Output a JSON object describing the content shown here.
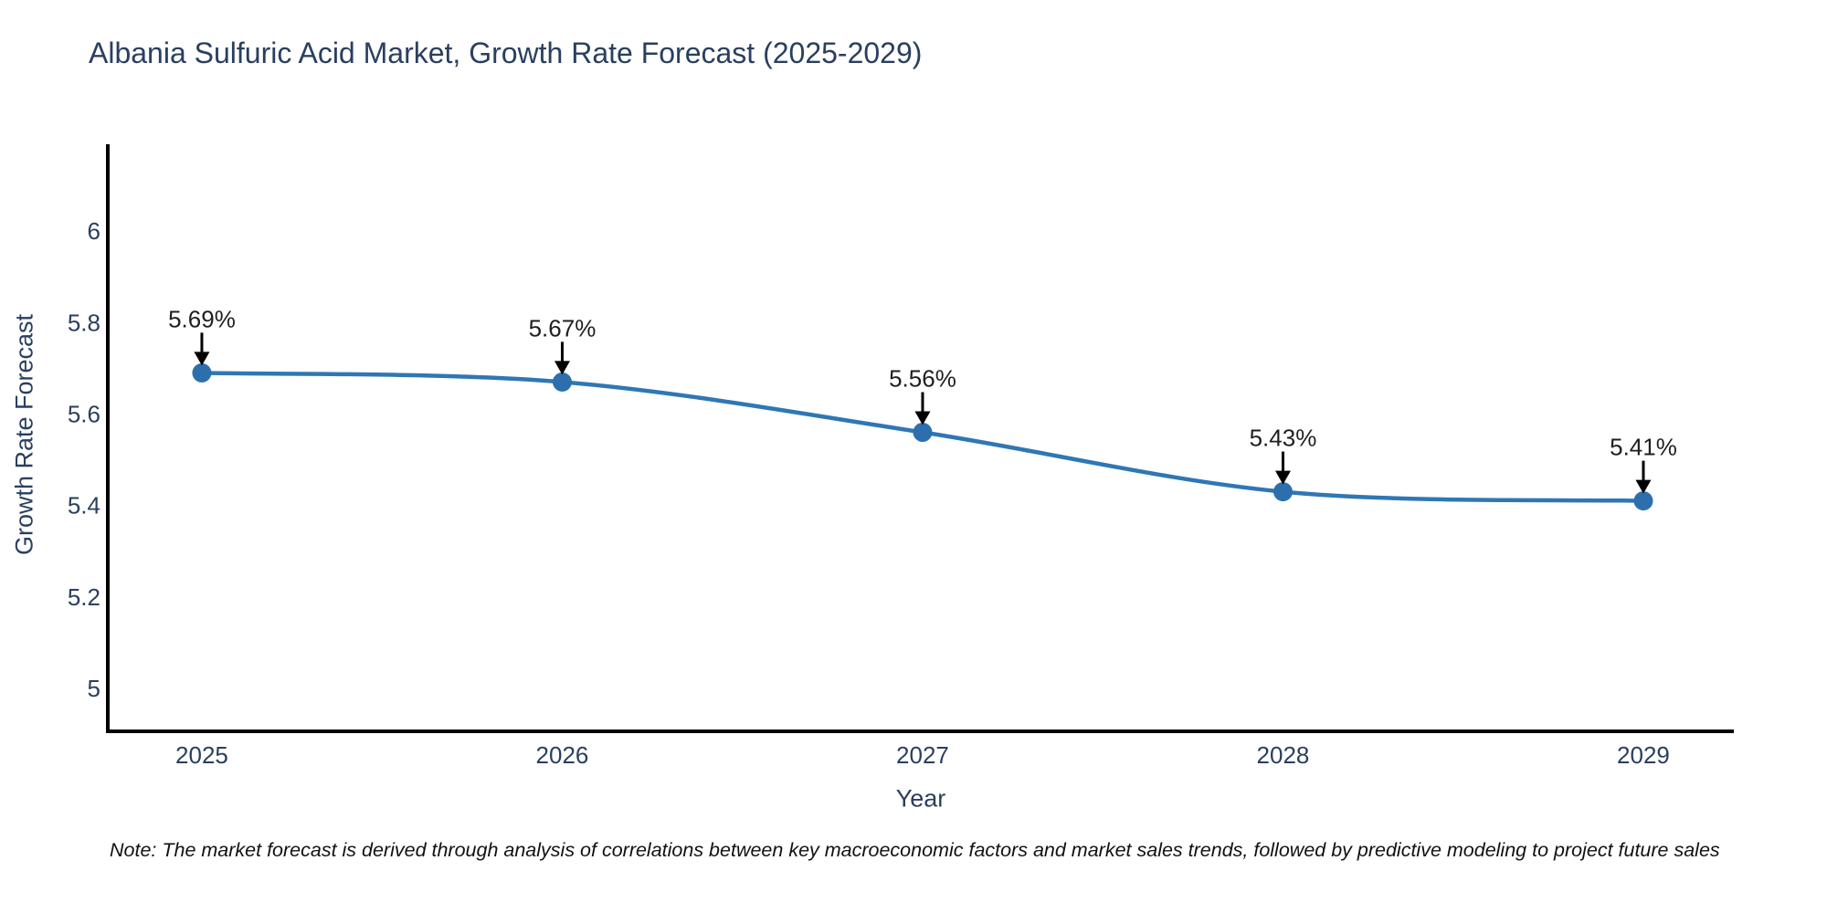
{
  "title": "Albania Sulfuric Acid Market, Growth Rate Forecast (2025-2029)",
  "note": "Note: The market forecast is derived through analysis of correlations between key macroeconomic factors and market sales trends, followed by predictive modeling to project future sales",
  "chart_data": {
    "type": "line",
    "title": "Albania Sulfuric Acid Market, Growth Rate Forecast (2025-2029)",
    "xlabel": "Year",
    "ylabel": "Growth Rate Forecast",
    "x": [
      2025,
      2026,
      2027,
      2028,
      2029
    ],
    "values": [
      5.69,
      5.67,
      5.56,
      5.43,
      5.41
    ],
    "point_labels": [
      "5.69%",
      "5.67%",
      "5.56%",
      "5.43%",
      "5.41%"
    ],
    "x_tick_labels": [
      "2025",
      "2026",
      "2027",
      "2028",
      "2029"
    ],
    "y_ticks": [
      5,
      5.2,
      5.4,
      5.6,
      5.8,
      6
    ],
    "y_tick_labels": [
      "5",
      "5.2",
      "5.4",
      "5.6",
      "5.8",
      "6"
    ],
    "xlim": [
      2024.739,
      2029.251
    ],
    "ylim": [
      4.906,
      6.19
    ],
    "grid": false,
    "legend": false,
    "line_shape": "spline",
    "colors": {
      "line": "#2f77b4",
      "marker": "#2d6fad",
      "axis": "#000000",
      "tick_text": "#2a3f5f",
      "annotation_text": "#1f1f1f",
      "arrow": "#000000",
      "background": "#ffffff"
    }
  }
}
